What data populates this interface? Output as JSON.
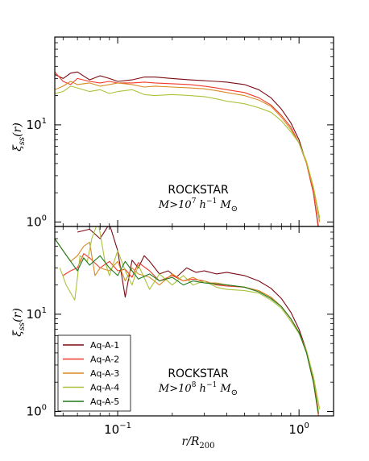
{
  "chart_data": [
    {
      "type": "line",
      "panel": "top",
      "xscale": "log",
      "yscale": "log",
      "xlim": [
        0.045,
        1.55
      ],
      "ylim": [
        0.9,
        80
      ],
      "ylabel": "ξ_ss(r)",
      "yticks": [
        {
          "value": 1,
          "label": "10",
          "exp": "0"
        },
        {
          "value": 10,
          "label": "10",
          "exp": "1"
        }
      ],
      "annotation": {
        "title": "ROCKSTAR",
        "subtitle": "M>10^7 h^-1 M_⊙"
      },
      "series": [
        {
          "name": "Aq-A-1",
          "color": "#7b0a14",
          "x": [
            0.045,
            0.05,
            0.055,
            0.06,
            0.07,
            0.08,
            0.09,
            0.1,
            0.12,
            0.14,
            0.16,
            0.2,
            0.25,
            0.3,
            0.35,
            0.4,
            0.5,
            0.6,
            0.7,
            0.8,
            0.9,
            1.0,
            1.1,
            1.2,
            1.28
          ],
          "y": [
            33,
            30,
            34,
            35,
            29,
            32,
            30,
            28,
            29,
            31,
            31,
            30,
            29,
            28.5,
            28,
            27.5,
            26,
            23,
            19,
            14.5,
            10.5,
            7,
            4,
            2,
            0.85
          ]
        },
        {
          "name": "Aq-A-2",
          "color": "#f23a2a",
          "x": [
            0.045,
            0.05,
            0.055,
            0.06,
            0.07,
            0.08,
            0.09,
            0.1,
            0.12,
            0.14,
            0.16,
            0.2,
            0.25,
            0.3,
            0.35,
            0.4,
            0.5,
            0.6,
            0.7,
            0.8,
            0.9,
            1.0,
            1.1,
            1.2,
            1.28
          ],
          "y": [
            35,
            28,
            26,
            30,
            28,
            27,
            28,
            27,
            27,
            27.5,
            27,
            26.5,
            26,
            25,
            24,
            23,
            21.5,
            19,
            16,
            12.5,
            9.5,
            6.5,
            4,
            2,
            0.9
          ]
        },
        {
          "name": "Aq-A-3",
          "color": "#d98a25",
          "x": [
            0.045,
            0.05,
            0.055,
            0.06,
            0.07,
            0.08,
            0.09,
            0.1,
            0.12,
            0.14,
            0.16,
            0.2,
            0.25,
            0.3,
            0.35,
            0.4,
            0.5,
            0.6,
            0.7,
            0.8,
            0.9,
            1.0,
            1.1,
            1.2,
            1.3
          ],
          "y": [
            23,
            25,
            28,
            26,
            27,
            25,
            26,
            27,
            26,
            24.5,
            25,
            24.5,
            24,
            23.5,
            22.5,
            21.5,
            20,
            18,
            15.5,
            12,
            9,
            6.5,
            4,
            2.2,
            1.0
          ]
        },
        {
          "name": "Aq-A-4",
          "color": "#a9c43a",
          "x": [
            0.045,
            0.05,
            0.055,
            0.06,
            0.07,
            0.08,
            0.09,
            0.1,
            0.12,
            0.14,
            0.16,
            0.2,
            0.25,
            0.3,
            0.35,
            0.4,
            0.5,
            0.6,
            0.7,
            0.8,
            0.9,
            1.0,
            1.1,
            1.2,
            1.3
          ],
          "y": [
            21,
            22,
            25,
            24,
            22,
            23,
            21,
            22,
            23,
            20.5,
            20,
            20.5,
            20,
            19.5,
            18.5,
            17.5,
            16.5,
            15,
            13.5,
            11,
            8.5,
            6.5,
            4.2,
            2.3,
            1.1
          ]
        }
      ]
    },
    {
      "type": "line",
      "panel": "bottom",
      "xscale": "log",
      "yscale": "log",
      "xlim": [
        0.045,
        1.55
      ],
      "ylim": [
        0.9,
        80
      ],
      "xlabel": "r/R_200",
      "ylabel": "ξ_ss(r)",
      "xticks": [
        {
          "value": 0.1,
          "label": "10",
          "exp": "−1"
        },
        {
          "value": 1,
          "label": "10",
          "exp": "0"
        }
      ],
      "yticks": [
        {
          "value": 1,
          "label": "10",
          "exp": "0"
        },
        {
          "value": 10,
          "label": "10",
          "exp": "1"
        }
      ],
      "annotation": {
        "title": "ROCKSTAR",
        "subtitle": "M>10^8 h^-1 M_⊙"
      },
      "legend": {
        "position": "bottom-left",
        "entries": [
          "Aq-A-1",
          "Aq-A-2",
          "Aq-A-3",
          "Aq-A-4",
          "Aq-A-5"
        ]
      },
      "series": [
        {
          "name": "Aq-A-1",
          "color": "#7b0a14",
          "x": [
            0.06,
            0.07,
            0.08,
            0.09,
            0.1,
            0.11,
            0.12,
            0.13,
            0.14,
            0.15,
            0.17,
            0.19,
            0.21,
            0.24,
            0.27,
            0.3,
            0.35,
            0.4,
            0.5,
            0.6,
            0.7,
            0.8,
            0.9,
            1.0,
            1.1,
            1.2,
            1.28
          ],
          "y": [
            70,
            75,
            60,
            85,
            45,
            15,
            36,
            30,
            40,
            35,
            26,
            28,
            24,
            30,
            27,
            28,
            26,
            27,
            25,
            22,
            18.5,
            14.5,
            10.5,
            7,
            4.2,
            2.1,
            0.95
          ]
        },
        {
          "name": "Aq-A-2",
          "color": "#f23a2a",
          "x": [
            0.05,
            0.055,
            0.06,
            0.065,
            0.07,
            0.08,
            0.09,
            0.1,
            0.11,
            0.12,
            0.13,
            0.15,
            0.17,
            0.2,
            0.23,
            0.26,
            0.3,
            0.35,
            0.4,
            0.5,
            0.6,
            0.7,
            0.8,
            0.9,
            1.0,
            1.1,
            1.2,
            1.28
          ],
          "y": [
            25,
            28,
            30,
            42,
            38,
            30,
            35,
            28,
            29,
            24,
            34,
            28,
            22,
            25,
            22,
            23,
            22,
            20,
            19.5,
            19,
            17.5,
            15,
            12,
            9,
            6.5,
            4,
            2,
            0.9
          ]
        },
        {
          "name": "Aq-A-3",
          "color": "#d98a25",
          "x": [
            0.045,
            0.05,
            0.055,
            0.06,
            0.065,
            0.07,
            0.075,
            0.08,
            0.09,
            0.1,
            0.11,
            0.12,
            0.13,
            0.15,
            0.17,
            0.2,
            0.23,
            0.26,
            0.3,
            0.35,
            0.4,
            0.5,
            0.6,
            0.7,
            0.8,
            0.9,
            1.0,
            1.1,
            1.2,
            1.28
          ],
          "y": [
            60,
            45,
            35,
            40,
            50,
            55,
            25,
            30,
            28,
            35,
            22,
            30,
            26,
            24,
            20,
            26,
            22,
            24,
            21,
            21,
            20,
            19,
            17.5,
            15,
            12,
            9,
            6.5,
            4.2,
            2.2,
            1.0
          ]
        },
        {
          "name": "Aq-A-4",
          "color": "#a9c43a",
          "x": [
            0.048,
            0.052,
            0.058,
            0.062,
            0.068,
            0.072,
            0.078,
            0.085,
            0.09,
            0.1,
            0.11,
            0.12,
            0.13,
            0.15,
            0.17,
            0.2,
            0.23,
            0.26,
            0.3,
            0.35,
            0.4,
            0.5,
            0.6,
            0.7,
            0.8,
            0.9,
            1.0,
            1.1,
            1.2,
            1.3
          ],
          "y": [
            30,
            20,
            14,
            40,
            35,
            60,
            90,
            35,
            25,
            45,
            28,
            20,
            32,
            18,
            26,
            20,
            25,
            20,
            22,
            19,
            18,
            17.5,
            16.5,
            14,
            11.5,
            8.5,
            6.3,
            4.2,
            2.3,
            1.05
          ]
        },
        {
          "name": "Aq-A-5",
          "color": "#1d7a1d",
          "x": [
            0.045,
            0.05,
            0.06,
            0.065,
            0.07,
            0.08,
            0.09,
            0.1,
            0.11,
            0.12,
            0.13,
            0.15,
            0.17,
            0.2,
            0.23,
            0.26,
            0.3,
            0.35,
            0.4,
            0.5,
            0.6,
            0.7,
            0.8,
            0.9,
            1.0,
            1.1,
            1.2,
            1.28
          ],
          "y": [
            60,
            45,
            28,
            38,
            32,
            40,
            30,
            25,
            35,
            28,
            23,
            26,
            22,
            24,
            20,
            22,
            21,
            20.5,
            20,
            19,
            17,
            14.5,
            12,
            9,
            6.5,
            4,
            2,
            0.95
          ]
        }
      ]
    }
  ]
}
